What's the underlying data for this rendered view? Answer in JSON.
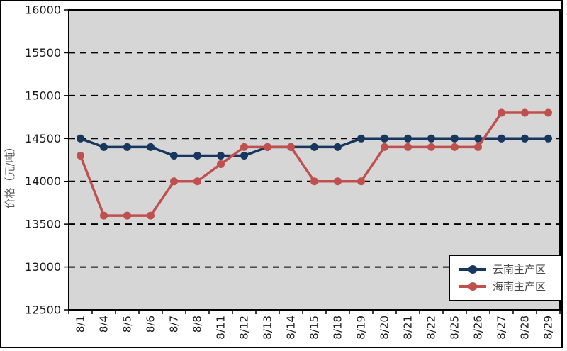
{
  "chart_data": {
    "type": "line",
    "title": "",
    "xlabel": "",
    "ylabel": "价格（元/吨）",
    "categories": [
      "8/1",
      "8/4",
      "8/5",
      "8/6",
      "8/7",
      "8/8",
      "8/11",
      "8/12",
      "8/13",
      "8/14",
      "8/15",
      "8/18",
      "8/19",
      "8/20",
      "8/21",
      "8/22",
      "8/25",
      "8/26",
      "8/27",
      "8/28",
      "8/29"
    ],
    "series": [
      {
        "name": "云南主产区",
        "color": "#17375e",
        "values": [
          14500,
          14400,
          14400,
          14400,
          14300,
          14300,
          14300,
          14300,
          14400,
          14400,
          14400,
          14400,
          14500,
          14500,
          14500,
          14500,
          14500,
          14500,
          14500,
          14500,
          14500
        ]
      },
      {
        "name": "海南主产区",
        "color": "#c0504d",
        "values": [
          14300,
          13600,
          13600,
          13600,
          14000,
          14000,
          14200,
          14400,
          14400,
          14400,
          14000,
          14000,
          14000,
          14400,
          14400,
          14400,
          14400,
          14400,
          14800,
          14800,
          14800
        ]
      }
    ],
    "ylim": [
      12500,
      16000
    ],
    "ytick_step": 500,
    "yticks": [
      "12500",
      "13000",
      "13500",
      "14000",
      "14500",
      "15000",
      "15500",
      "16000"
    ],
    "grid": "horizontal-dashed",
    "legend_position": "bottom-right-inside",
    "plot_background": "#d6d6d6",
    "gridline_color": "#000000",
    "axis_color": "#000000",
    "tick_label_color": "#1a1a1a",
    "ylabel_color": "#595959"
  },
  "legend": {
    "items": [
      {
        "label": "云南主产区",
        "color": "#17375e"
      },
      {
        "label": "海南主产区",
        "color": "#c0504d"
      }
    ]
  }
}
